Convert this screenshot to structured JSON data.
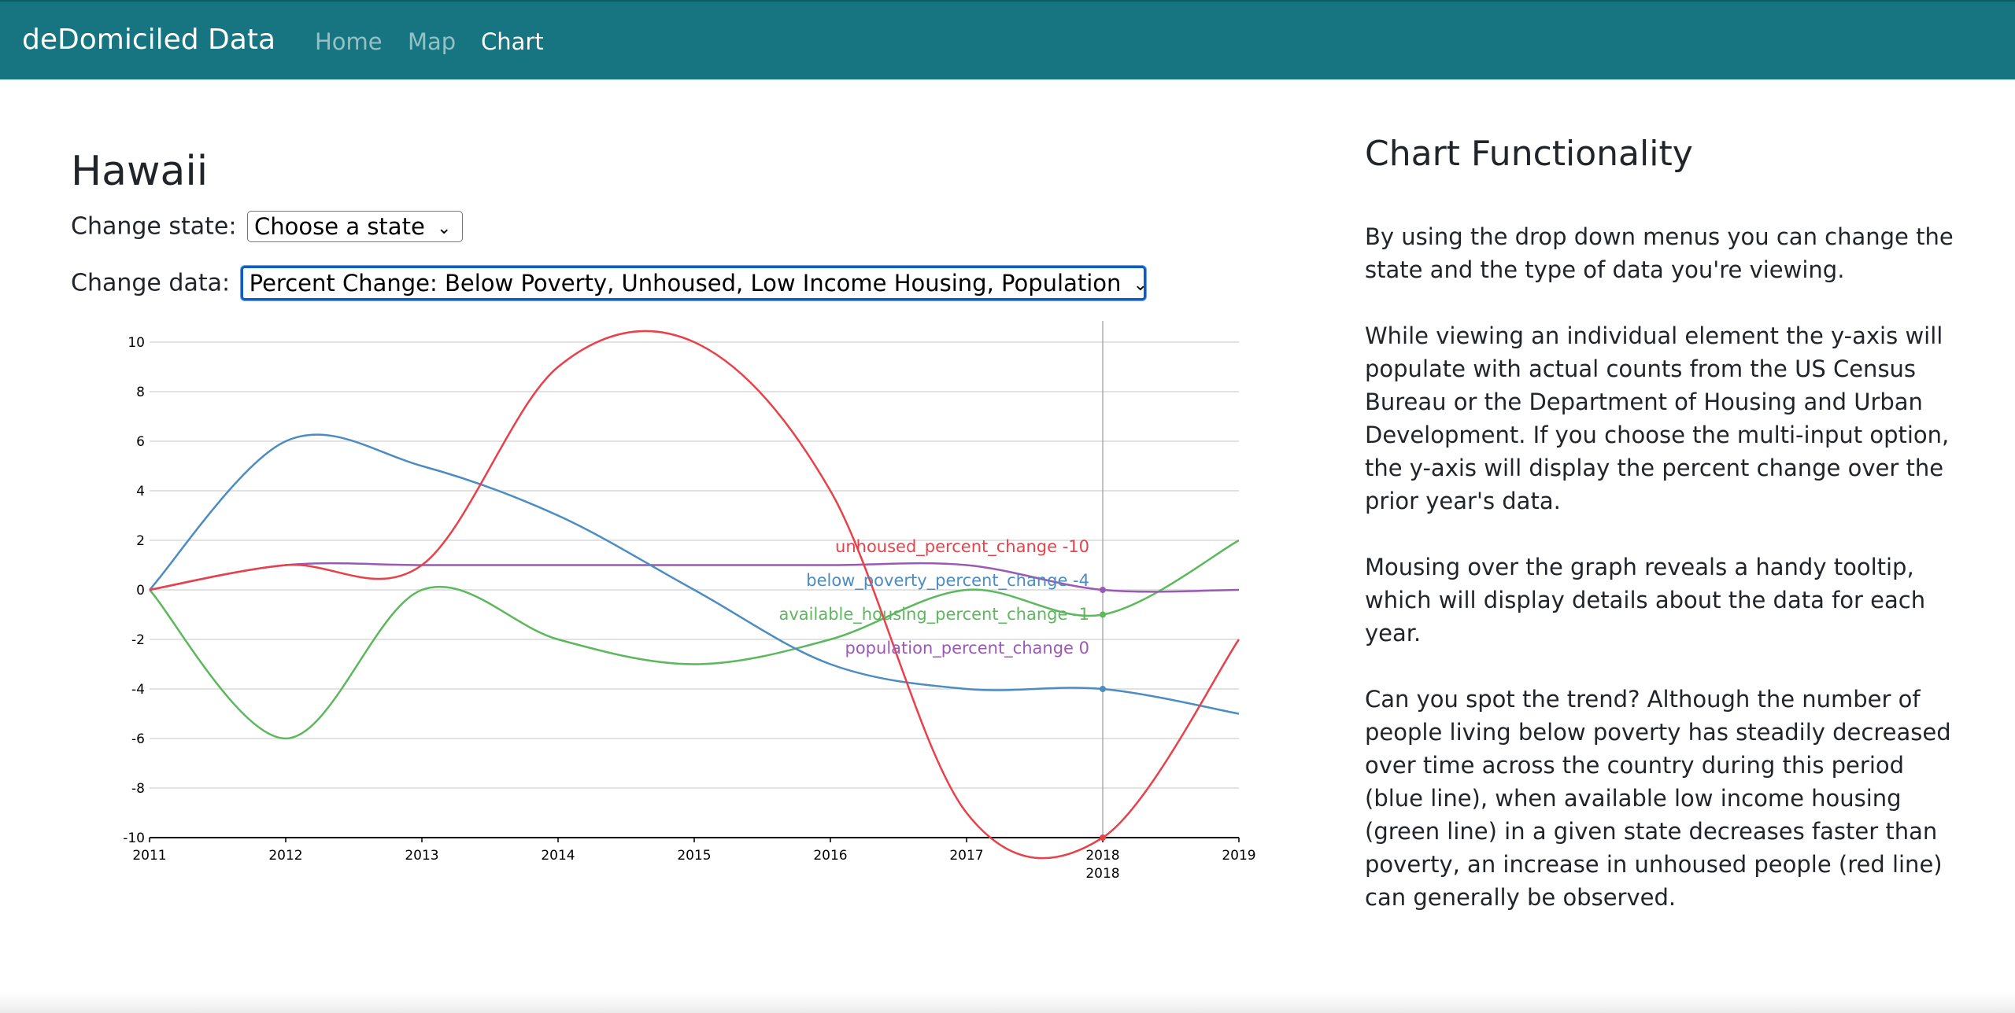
{
  "nav": {
    "brand": "deDomiciled Data",
    "links": [
      "Home",
      "Map",
      "Chart"
    ],
    "active": "Chart"
  },
  "main": {
    "state_title": "Hawaii",
    "change_state_label": "Change state:",
    "change_state_value": "Choose a state",
    "change_data_label": "Change data:",
    "change_data_value": "Percent Change: Below Poverty, Unhoused, Low Income Housing, Population"
  },
  "chart_data": {
    "type": "line",
    "x": [
      2011,
      2012,
      2013,
      2014,
      2015,
      2016,
      2017,
      2018,
      2019
    ],
    "ylim": [
      -10,
      10
    ],
    "yticks": [
      -10,
      -8,
      -6,
      -4,
      -2,
      0,
      2,
      4,
      6,
      8,
      10
    ],
    "grid": true,
    "series": [
      {
        "name": "unhoused_percent_change",
        "color": "#e8414a",
        "values": [
          0,
          1,
          1,
          9,
          10,
          4,
          -9,
          -10,
          -2
        ]
      },
      {
        "name": "below_poverty_percent_change",
        "color": "#4b8cc2",
        "values": [
          0,
          6,
          5,
          3,
          0,
          -3,
          -4,
          -4,
          -5
        ]
      },
      {
        "name": "available_housing_percent_change",
        "color": "#5cb85c",
        "values": [
          0,
          -6,
          0,
          -2,
          -3,
          -2,
          0,
          -1,
          2
        ]
      },
      {
        "name": "population_percent_change",
        "color": "#9b59b6",
        "values": [
          0,
          1,
          1,
          1,
          1,
          1,
          1,
          0,
          0
        ]
      }
    ],
    "hover": {
      "year": 2018,
      "year_label": "2018",
      "items": [
        {
          "label": "unhoused_percent_change -10",
          "color": "#e8414a"
        },
        {
          "label": "below_poverty_percent_change -4",
          "color": "#4b8cc2"
        },
        {
          "label": "available_housing_percent_change -1",
          "color": "#5cb85c"
        },
        {
          "label": "population_percent_change 0",
          "color": "#9b59b6"
        }
      ]
    }
  },
  "sidebar": {
    "title": "Chart Functionality",
    "paragraphs": [
      "By using the drop down menus you can change the state and the type of data you're viewing.",
      "While viewing an individual element the y-axis will populate with actual counts from the US Census Bureau or the Department of Housing and Urban Development. If you choose the multi-input option, the y-axis will display the percent change over the prior year's data.",
      "Mousing over the graph reveals a handy tooltip, which will display details about the data for each year.",
      "Can you spot the trend? Although the number of people living below poverty has steadily decreased over time across the country during this period (blue line), when available low income housing (green line) in a given state decreases faster than poverty, an increase in unhoused people (red line) can generally be observed."
    ]
  },
  "colors": {
    "navbar": "#167580",
    "focus": "#0b5cc7"
  }
}
